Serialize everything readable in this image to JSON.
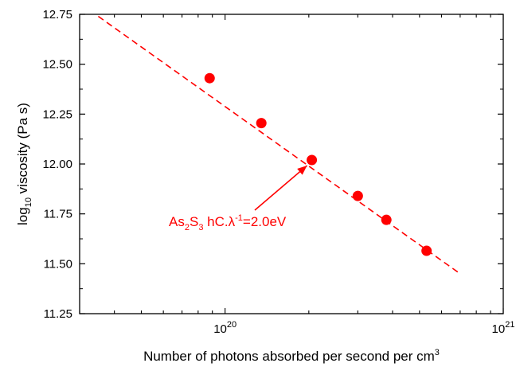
{
  "chart_data": {
    "type": "scatter",
    "xlabel": {
      "prefix": "Number of photons absorbed per second per cm",
      "sup": "3"
    },
    "ylabel": {
      "prefix": "log",
      "sub": "10",
      "suffix": " viscosity (Pa s)"
    },
    "xscale": "log",
    "xlim": [
      3e+19,
      1e+21
    ],
    "ylim": [
      11.25,
      12.75
    ],
    "yticks": [
      "11.25",
      "11.50",
      "11.75",
      "12.00",
      "12.25",
      "12.50",
      "12.75"
    ],
    "xticks": [
      {
        "value": 1e+20,
        "base": "10",
        "exp": "20"
      },
      {
        "value": 1e+21,
        "base": "10",
        "exp": "21"
      }
    ],
    "grid": false,
    "color": "#ff0000",
    "points": [
      {
        "x": 8.8e+19,
        "y": 12.43
      },
      {
        "x": 1.35e+20,
        "y": 12.205
      },
      {
        "x": 2.05e+20,
        "y": 12.02
      },
      {
        "x": 3e+20,
        "y": 11.84
      },
      {
        "x": 3.8e+20,
        "y": 11.72
      },
      {
        "x": 5.3e+20,
        "y": 11.565
      }
    ],
    "fit_line": {
      "style": "dashed",
      "x": [
        3.5e+19,
        7e+20
      ],
      "y": [
        12.74,
        11.45
      ]
    },
    "annotation": {
      "parts": [
        {
          "text": "As"
        },
        {
          "text": "2",
          "sub": true
        },
        {
          "text": "S"
        },
        {
          "text": "3",
          "sub": true
        },
        {
          "text": " hC."
        },
        {
          "text": "λ"
        },
        {
          "text": "-1",
          "sup": true
        },
        {
          "text": "=2.0eV"
        }
      ],
      "points_to": {
        "x": 2.05e+20,
        "y": 12.02
      }
    }
  }
}
